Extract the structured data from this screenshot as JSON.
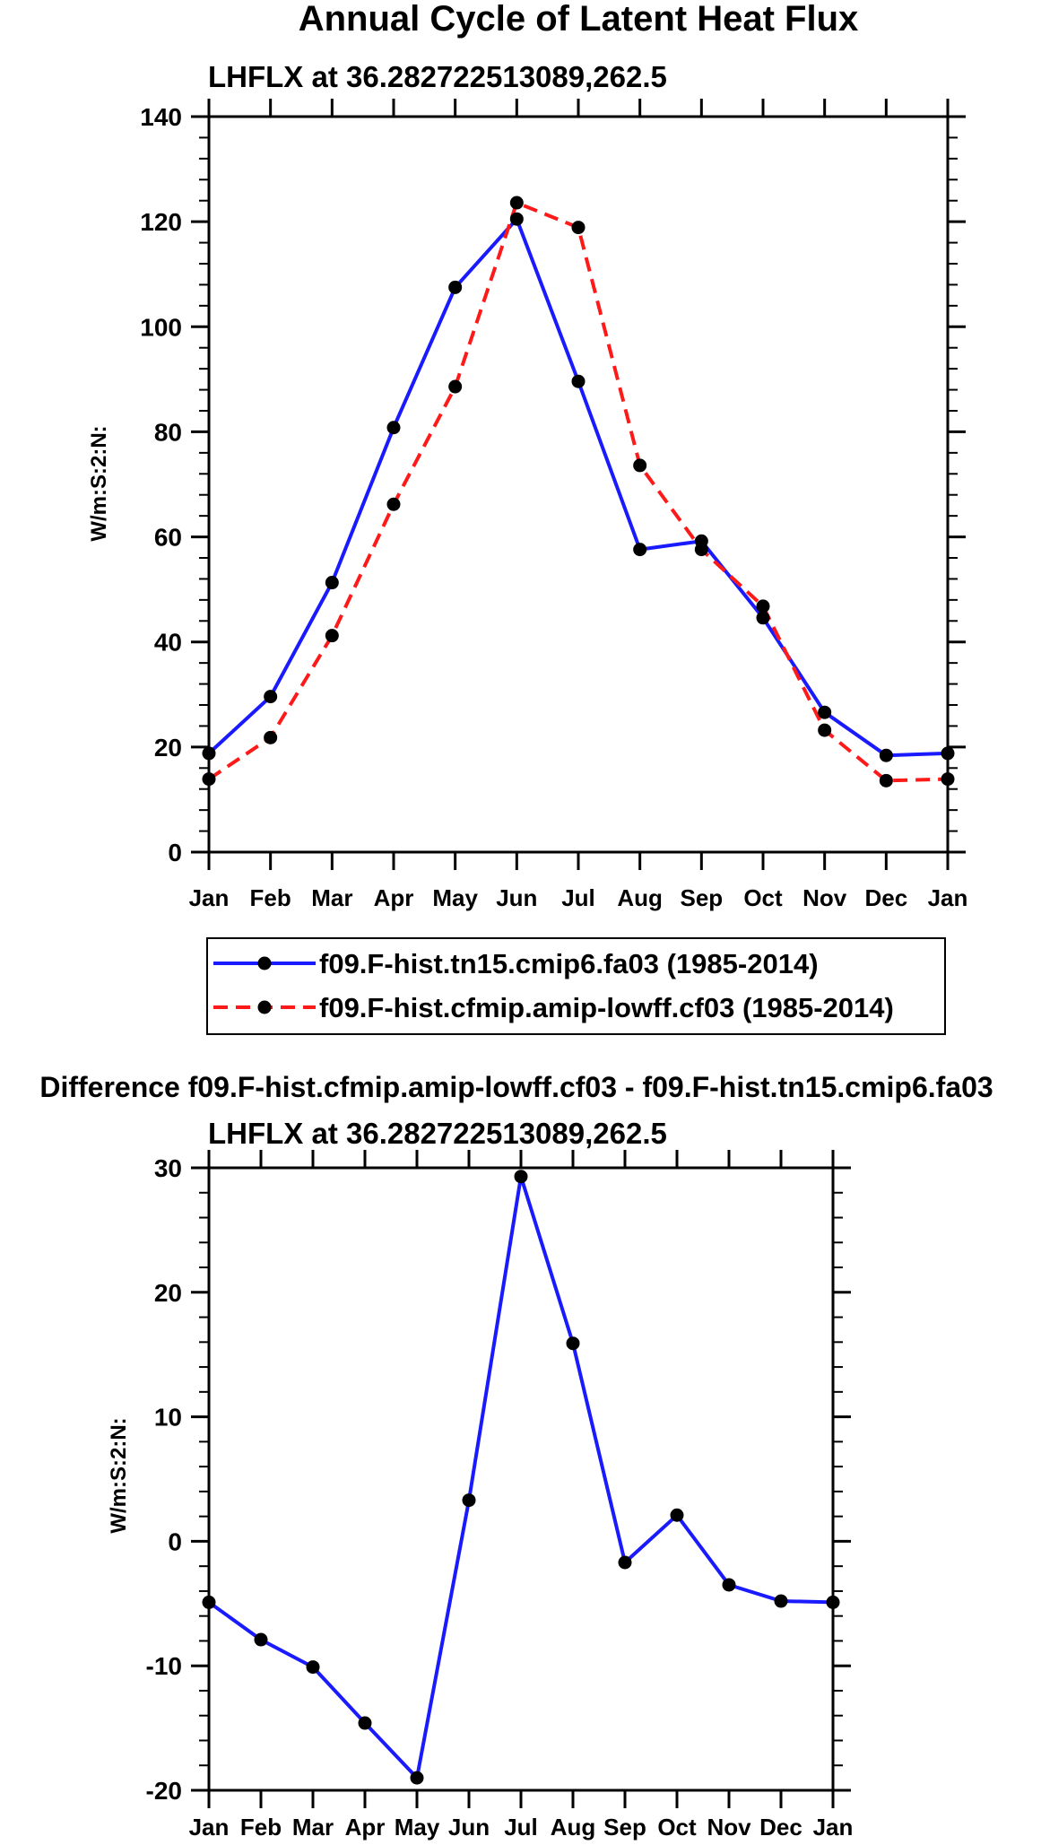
{
  "chart_data": [
    {
      "type": "line",
      "title": "Annual Cycle of Latent Heat Flux",
      "subtitle": "LHFLX at 36.282722513089,262.5",
      "xlabel": "",
      "ylabel": "W/m:S:2:N:",
      "categories": [
        "Jan",
        "Feb",
        "Mar",
        "Apr",
        "May",
        "Jun",
        "Jul",
        "Aug",
        "Sep",
        "Oct",
        "Nov",
        "Dec",
        "Jan"
      ],
      "ylim": [
        0,
        140
      ],
      "yticks": [
        "0",
        "20",
        "40",
        "60",
        "80",
        "100",
        "120",
        "140"
      ],
      "legend_position": "below",
      "series": [
        {
          "name": "f09.F-hist.tn15.cmip6.fa03 (1985-2014)",
          "color": "#1a1aff",
          "dash": "solid",
          "values": [
            18.8,
            29.6,
            51.3,
            80.8,
            107.5,
            120.5,
            89.6,
            57.6,
            59.2,
            44.6,
            26.6,
            18.4,
            18.8
          ]
        },
        {
          "name": "f09.F-hist.cfmip.amip-lowff.cf03 (1985-2014)",
          "color": "#ff1a1a",
          "dash": "dashed",
          "values": [
            13.9,
            21.8,
            41.2,
            66.2,
            88.6,
            123.6,
            118.9,
            73.6,
            57.6,
            46.8,
            23.2,
            13.6,
            13.9
          ]
        }
      ]
    },
    {
      "type": "line",
      "title": "Difference f09.F-hist.cfmip.amip-lowff.cf03 - f09.F-hist.tn15.cmip6.fa03",
      "subtitle": "LHFLX at 36.282722513089,262.5",
      "xlabel": "",
      "ylabel": "W/m:S:2:N:",
      "categories": [
        "Jan",
        "Feb",
        "Mar",
        "Apr",
        "May",
        "Jun",
        "Jul",
        "Aug",
        "Sep",
        "Oct",
        "Nov",
        "Dec",
        "Jan"
      ],
      "ylim": [
        -20,
        30
      ],
      "yticks": [
        "-20",
        "-10",
        "0",
        "10",
        "20",
        "30"
      ],
      "series": [
        {
          "name": "difference",
          "color": "#1a1aff",
          "dash": "solid",
          "values": [
            -4.9,
            -7.9,
            -10.1,
            -14.6,
            -19.0,
            3.3,
            29.3,
            15.9,
            -1.7,
            2.1,
            -3.5,
            -4.8,
            -4.9
          ]
        }
      ]
    }
  ]
}
